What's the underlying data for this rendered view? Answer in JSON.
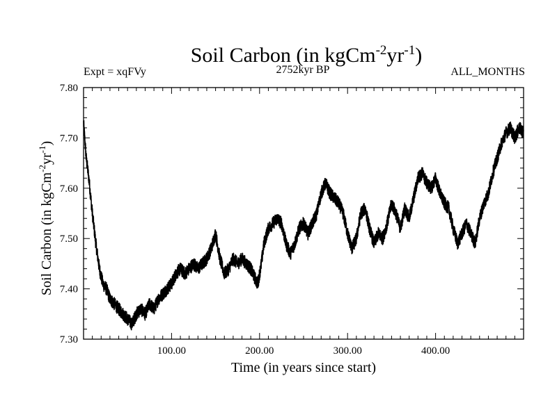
{
  "header": {
    "title_main": "Soil Carbon (in kgCm",
    "title_exp1": "-2",
    "title_mid": "yr",
    "title_exp2": "-1",
    "title_end": ")",
    "expt_label": "Expt = xqFVy",
    "period_label": "2752kyr BP",
    "months_label": "ALL_MONTHS"
  },
  "chart_data": {
    "type": "line",
    "title": "Soil Carbon (in kgCm-2yr-1)",
    "xlabel": "Time (in years since start)",
    "ylabel": "Soil Carbon (in kgCm-2yr-1)",
    "xlim": [
      0,
      500
    ],
    "ylim": [
      7.3,
      7.8
    ],
    "x_ticks": [
      100,
      200,
      300,
      400
    ],
    "x_tick_labels": [
      "100.00",
      "200.00",
      "300.00",
      "400.00"
    ],
    "y_ticks": [
      7.3,
      7.4,
      7.5,
      7.6,
      7.7,
      7.8
    ],
    "y_tick_labels": [
      "7.30",
      "7.40",
      "7.50",
      "7.60",
      "7.70",
      "7.80"
    ],
    "series": [
      {
        "name": "Soil Carbon",
        "color": "#000000",
        "noise_amplitude": 0.013,
        "points": [
          [
            0,
            7.73
          ],
          [
            3,
            7.66
          ],
          [
            6,
            7.62
          ],
          [
            10,
            7.55
          ],
          [
            14,
            7.49
          ],
          [
            18,
            7.44
          ],
          [
            22,
            7.41
          ],
          [
            26,
            7.4
          ],
          [
            30,
            7.38
          ],
          [
            35,
            7.37
          ],
          [
            40,
            7.36
          ],
          [
            45,
            7.35
          ],
          [
            50,
            7.34
          ],
          [
            55,
            7.33
          ],
          [
            60,
            7.35
          ],
          [
            65,
            7.36
          ],
          [
            70,
            7.35
          ],
          [
            75,
            7.37
          ],
          [
            80,
            7.36
          ],
          [
            85,
            7.38
          ],
          [
            90,
            7.39
          ],
          [
            95,
            7.4
          ],
          [
            100,
            7.41
          ],
          [
            105,
            7.43
          ],
          [
            110,
            7.44
          ],
          [
            115,
            7.43
          ],
          [
            120,
            7.44
          ],
          [
            125,
            7.45
          ],
          [
            130,
            7.44
          ],
          [
            135,
            7.45
          ],
          [
            140,
            7.46
          ],
          [
            145,
            7.48
          ],
          [
            150,
            7.51
          ],
          [
            155,
            7.46
          ],
          [
            160,
            7.43
          ],
          [
            165,
            7.44
          ],
          [
            170,
            7.46
          ],
          [
            175,
            7.45
          ],
          [
            180,
            7.46
          ],
          [
            185,
            7.45
          ],
          [
            190,
            7.44
          ],
          [
            195,
            7.42
          ],
          [
            198,
            7.41
          ],
          [
            202,
            7.45
          ],
          [
            205,
            7.49
          ],
          [
            210,
            7.52
          ],
          [
            215,
            7.53
          ],
          [
            220,
            7.54
          ],
          [
            225,
            7.53
          ],
          [
            230,
            7.49
          ],
          [
            235,
            7.47
          ],
          [
            240,
            7.49
          ],
          [
            245,
            7.52
          ],
          [
            250,
            7.53
          ],
          [
            255,
            7.51
          ],
          [
            260,
            7.53
          ],
          [
            265,
            7.55
          ],
          [
            270,
            7.59
          ],
          [
            275,
            7.61
          ],
          [
            280,
            7.59
          ],
          [
            285,
            7.58
          ],
          [
            290,
            7.57
          ],
          [
            295,
            7.55
          ],
          [
            300,
            7.51
          ],
          [
            305,
            7.48
          ],
          [
            310,
            7.5
          ],
          [
            315,
            7.55
          ],
          [
            320,
            7.56
          ],
          [
            325,
            7.52
          ],
          [
            330,
            7.49
          ],
          [
            335,
            7.51
          ],
          [
            340,
            7.5
          ],
          [
            345,
            7.53
          ],
          [
            350,
            7.57
          ],
          [
            355,
            7.55
          ],
          [
            360,
            7.52
          ],
          [
            365,
            7.56
          ],
          [
            370,
            7.54
          ],
          [
            375,
            7.58
          ],
          [
            380,
            7.62
          ],
          [
            385,
            7.63
          ],
          [
            390,
            7.61
          ],
          [
            395,
            7.6
          ],
          [
            400,
            7.62
          ],
          [
            405,
            7.59
          ],
          [
            410,
            7.57
          ],
          [
            415,
            7.56
          ],
          [
            420,
            7.52
          ],
          [
            425,
            7.49
          ],
          [
            430,
            7.51
          ],
          [
            435,
            7.53
          ],
          [
            440,
            7.51
          ],
          [
            445,
            7.49
          ],
          [
            450,
            7.54
          ],
          [
            455,
            7.57
          ],
          [
            460,
            7.59
          ],
          [
            465,
            7.63
          ],
          [
            470,
            7.66
          ],
          [
            475,
            7.69
          ],
          [
            480,
            7.71
          ],
          [
            485,
            7.72
          ],
          [
            490,
            7.7
          ],
          [
            495,
            7.72
          ],
          [
            500,
            7.71
          ]
        ]
      }
    ]
  }
}
